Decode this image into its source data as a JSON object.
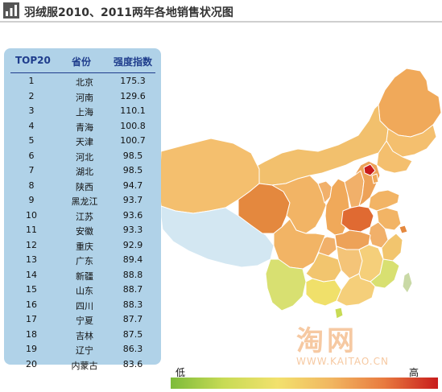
{
  "header": {
    "title": "羽绒服2010、2011两年各地销售状况图",
    "icon": "bar-chart-icon"
  },
  "top20": {
    "col_rank": "TOP20",
    "col_province": "省份",
    "col_index": "强度指数",
    "rows": [
      {
        "rank": "1",
        "province": "北京",
        "index": "175.3"
      },
      {
        "rank": "2",
        "province": "河南",
        "index": "129.6"
      },
      {
        "rank": "3",
        "province": "上海",
        "index": "110.1"
      },
      {
        "rank": "4",
        "province": "青海",
        "index": "100.8"
      },
      {
        "rank": "5",
        "province": "天津",
        "index": "100.7"
      },
      {
        "rank": "6",
        "province": "河北",
        "index": "98.5"
      },
      {
        "rank": "7",
        "province": "湖北",
        "index": "98.5"
      },
      {
        "rank": "8",
        "province": "陕西",
        "index": "94.7"
      },
      {
        "rank": "9",
        "province": "黑龙江",
        "index": "93.7"
      },
      {
        "rank": "10",
        "province": "江苏",
        "index": "93.6"
      },
      {
        "rank": "11",
        "province": "安徽",
        "index": "93.3"
      },
      {
        "rank": "12",
        "province": "重庆",
        "index": "92.9"
      },
      {
        "rank": "13",
        "province": "广东",
        "index": "89.4"
      },
      {
        "rank": "14",
        "province": "新疆",
        "index": "88.8"
      },
      {
        "rank": "15",
        "province": "山东",
        "index": "88.7"
      },
      {
        "rank": "16",
        "province": "四川",
        "index": "88.3"
      },
      {
        "rank": "17",
        "province": "宁夏",
        "index": "87.7"
      },
      {
        "rank": "18",
        "province": "吉林",
        "index": "87.5"
      },
      {
        "rank": "19",
        "province": "辽宁",
        "index": "86.3"
      },
      {
        "rank": "20",
        "province": "内蒙古",
        "index": "83.6"
      }
    ]
  },
  "legend": {
    "low_label": "低",
    "high_label": "高",
    "colors": [
      "#7dbb3a",
      "#c8db55",
      "#f2e16d",
      "#f1b661",
      "#e87a3f",
      "#c81c1c"
    ]
  },
  "watermark": {
    "text": "淘网",
    "url": "WWW.KAITAO.CN"
  }
}
